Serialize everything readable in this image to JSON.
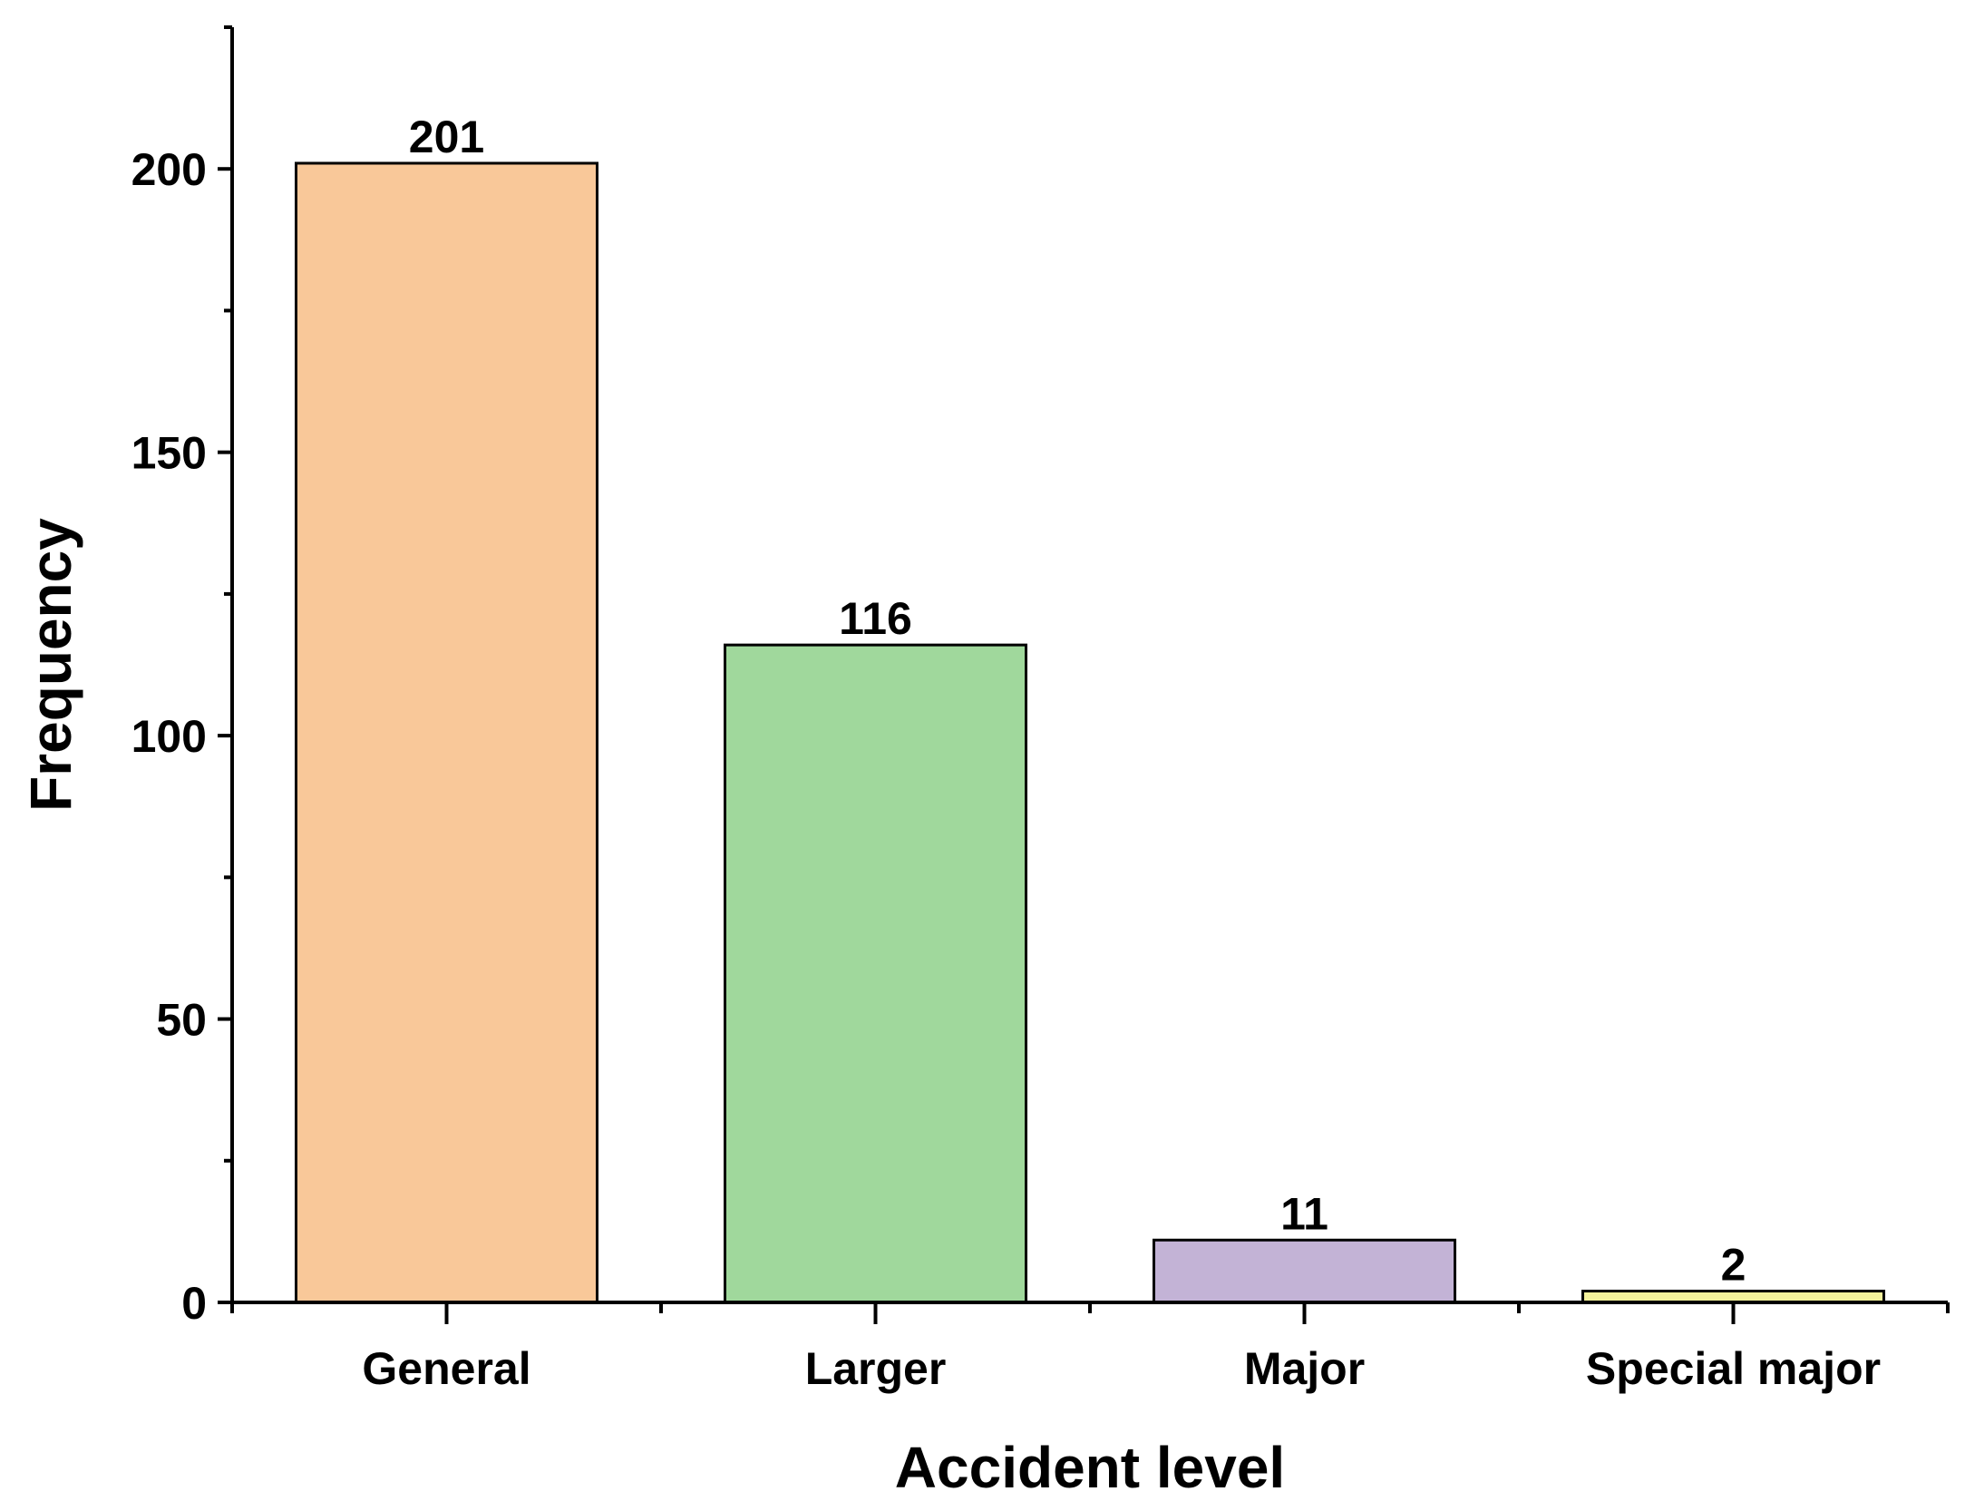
{
  "chart_data": {
    "type": "bar",
    "categories": [
      "General",
      "Larger",
      "Major",
      "Special major"
    ],
    "values": [
      201,
      116,
      11,
      2
    ],
    "data_labels": [
      "201",
      "116",
      "11",
      "2"
    ],
    "colors": [
      "#f9c899",
      "#a0d89c",
      "#c3b3d6",
      "#f4f29b"
    ],
    "xlabel": "Accident level",
    "ylabel": "Frequency",
    "ylim": [
      0,
      225
    ],
    "y_major_ticks": [
      0,
      50,
      100,
      150,
      200
    ],
    "y_tick_labels": [
      "0",
      "50",
      "100",
      "150",
      "200"
    ],
    "y_minor_ticks": [
      25,
      75,
      125,
      175,
      225
    ],
    "grid": false,
    "legend": "none"
  }
}
